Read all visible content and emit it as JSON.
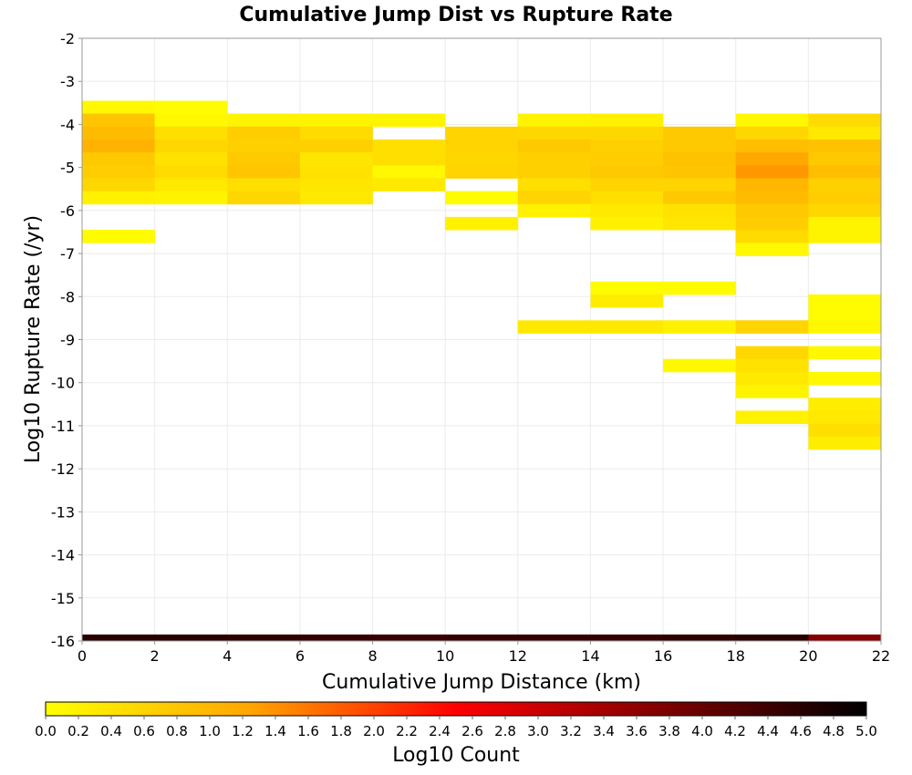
{
  "chart_data": {
    "type": "heatmap",
    "title": "Cumulative Jump Dist vs Rupture Rate",
    "xlabel": "Cumulative Jump Distance (km)",
    "ylabel": "Log10 Rupture Rate (/yr)",
    "xlim": [
      0,
      22
    ],
    "ylim": [
      -16,
      -2
    ],
    "x_ticks": [
      "0",
      "2",
      "4",
      "6",
      "8",
      "10",
      "12",
      "14",
      "16",
      "18",
      "20",
      "22"
    ],
    "y_ticks": [
      "-2",
      "-3",
      "-4",
      "-5",
      "-6",
      "-7",
      "-8",
      "-9",
      "-10",
      "-11",
      "-12",
      "-13",
      "-14",
      "-15",
      "-16"
    ],
    "x_bin_width": 2,
    "y_bin_height": 0.3,
    "grid": true,
    "colorbar": {
      "label": "Log10 Count",
      "range": [
        0,
        5
      ],
      "ticks": [
        "0.0",
        "0.2",
        "0.4",
        "0.6",
        "0.8",
        "1.0",
        "1.2",
        "1.4",
        "1.6",
        "1.8",
        "2.0",
        "2.2",
        "2.4",
        "2.6",
        "2.8",
        "3.0",
        "3.2",
        "3.4",
        "3.6",
        "3.8",
        "4.0",
        "4.2",
        "4.4",
        "4.6",
        "4.8",
        "5.0"
      ],
      "stops": [
        "#ffff00",
        "#ffa500",
        "#ff0000",
        "#800000",
        "#000000"
      ]
    },
    "cells": [
      {
        "x": 0,
        "y": -3.6,
        "v": 0.1
      },
      {
        "x": 0,
        "y": -3.9,
        "v": 0.8
      },
      {
        "x": 0,
        "y": -4.2,
        "v": 0.95
      },
      {
        "x": 0,
        "y": -4.5,
        "v": 1.05
      },
      {
        "x": 0,
        "y": -4.8,
        "v": 0.75
      },
      {
        "x": 0,
        "y": -5.1,
        "v": 0.7
      },
      {
        "x": 0,
        "y": -5.4,
        "v": 0.55
      },
      {
        "x": 0,
        "y": -5.7,
        "v": 0.2
      },
      {
        "x": 0,
        "y": -6.6,
        "v": 0.05
      },
      {
        "x": 2,
        "y": -3.6,
        "v": 0.05
      },
      {
        "x": 2,
        "y": -3.9,
        "v": 0.1
      },
      {
        "x": 2,
        "y": -4.2,
        "v": 0.45
      },
      {
        "x": 2,
        "y": -4.5,
        "v": 0.55
      },
      {
        "x": 2,
        "y": -4.8,
        "v": 0.4
      },
      {
        "x": 2,
        "y": -5.1,
        "v": 0.5
      },
      {
        "x": 2,
        "y": -5.4,
        "v": 0.3
      },
      {
        "x": 2,
        "y": -5.7,
        "v": 0.15
      },
      {
        "x": 4,
        "y": -3.9,
        "v": 0.15
      },
      {
        "x": 4,
        "y": -4.2,
        "v": 0.7
      },
      {
        "x": 4,
        "y": -4.5,
        "v": 0.65
      },
      {
        "x": 4,
        "y": -4.8,
        "v": 0.75
      },
      {
        "x": 4,
        "y": -5.1,
        "v": 0.8
      },
      {
        "x": 4,
        "y": -5.4,
        "v": 0.45
      },
      {
        "x": 4,
        "y": -5.7,
        "v": 0.55
      },
      {
        "x": 6,
        "y": -3.9,
        "v": 0.15
      },
      {
        "x": 6,
        "y": -4.2,
        "v": 0.5
      },
      {
        "x": 6,
        "y": -4.5,
        "v": 0.65
      },
      {
        "x": 6,
        "y": -4.8,
        "v": 0.35
      },
      {
        "x": 6,
        "y": -5.1,
        "v": 0.4
      },
      {
        "x": 6,
        "y": -5.4,
        "v": 0.35
      },
      {
        "x": 6,
        "y": -5.7,
        "v": 0.3
      },
      {
        "x": 8,
        "y": -3.9,
        "v": 0.15
      },
      {
        "x": 8,
        "y": -4.5,
        "v": 0.45
      },
      {
        "x": 8,
        "y": -4.8,
        "v": 0.45
      },
      {
        "x": 8,
        "y": -5.1,
        "v": 0.1
      },
      {
        "x": 8,
        "y": -5.4,
        "v": 0.3
      },
      {
        "x": 10,
        "y": -4.2,
        "v": 0.6
      },
      {
        "x": 10,
        "y": -4.5,
        "v": 0.6
      },
      {
        "x": 10,
        "y": -4.8,
        "v": 0.55
      },
      {
        "x": 10,
        "y": -5.1,
        "v": 0.6
      },
      {
        "x": 10,
        "y": -5.7,
        "v": 0.05
      },
      {
        "x": 10,
        "y": -6.3,
        "v": 0.2
      },
      {
        "x": 12,
        "y": -3.9,
        "v": 0.15
      },
      {
        "x": 12,
        "y": -4.2,
        "v": 0.55
      },
      {
        "x": 12,
        "y": -4.5,
        "v": 0.75
      },
      {
        "x": 12,
        "y": -4.8,
        "v": 0.65
      },
      {
        "x": 12,
        "y": -5.1,
        "v": 0.65
      },
      {
        "x": 12,
        "y": -5.4,
        "v": 0.45
      },
      {
        "x": 12,
        "y": -5.7,
        "v": 0.6
      },
      {
        "x": 12,
        "y": -6.0,
        "v": 0.2
      },
      {
        "x": 12,
        "y": -8.7,
        "v": 0.3
      },
      {
        "x": 14,
        "y": -3.9,
        "v": 0.2
      },
      {
        "x": 14,
        "y": -4.2,
        "v": 0.55
      },
      {
        "x": 14,
        "y": -4.5,
        "v": 0.65
      },
      {
        "x": 14,
        "y": -4.8,
        "v": 0.7
      },
      {
        "x": 14,
        "y": -5.1,
        "v": 0.75
      },
      {
        "x": 14,
        "y": -5.4,
        "v": 0.6
      },
      {
        "x": 14,
        "y": -5.7,
        "v": 0.45
      },
      {
        "x": 14,
        "y": -6.0,
        "v": 0.3
      },
      {
        "x": 14,
        "y": -6.3,
        "v": 0.2
      },
      {
        "x": 14,
        "y": -7.8,
        "v": 0.05
      },
      {
        "x": 14,
        "y": -8.1,
        "v": 0.25
      },
      {
        "x": 14,
        "y": -8.7,
        "v": 0.3
      },
      {
        "x": 16,
        "y": -4.2,
        "v": 0.75
      },
      {
        "x": 16,
        "y": -4.5,
        "v": 0.75
      },
      {
        "x": 16,
        "y": -4.8,
        "v": 0.85
      },
      {
        "x": 16,
        "y": -5.1,
        "v": 0.8
      },
      {
        "x": 16,
        "y": -5.4,
        "v": 0.6
      },
      {
        "x": 16,
        "y": -5.7,
        "v": 0.75
      },
      {
        "x": 16,
        "y": -6.0,
        "v": 0.4
      },
      {
        "x": 16,
        "y": -6.3,
        "v": 0.35
      },
      {
        "x": 16,
        "y": -7.8,
        "v": 0.05
      },
      {
        "x": 16,
        "y": -8.7,
        "v": 0.2
      },
      {
        "x": 16,
        "y": -9.6,
        "v": 0.1
      },
      {
        "x": 18,
        "y": -3.9,
        "v": 0.1
      },
      {
        "x": 18,
        "y": -4.2,
        "v": 0.55
      },
      {
        "x": 18,
        "y": -4.5,
        "v": 0.9
      },
      {
        "x": 18,
        "y": -4.8,
        "v": 1.2
      },
      {
        "x": 18,
        "y": -5.1,
        "v": 1.35
      },
      {
        "x": 18,
        "y": -5.4,
        "v": 1.0
      },
      {
        "x": 18,
        "y": -5.7,
        "v": 0.95
      },
      {
        "x": 18,
        "y": -6.0,
        "v": 0.75
      },
      {
        "x": 18,
        "y": -6.3,
        "v": 0.7
      },
      {
        "x": 18,
        "y": -6.6,
        "v": 0.5
      },
      {
        "x": 18,
        "y": -6.9,
        "v": 0.1
      },
      {
        "x": 18,
        "y": -8.7,
        "v": 0.6
      },
      {
        "x": 18,
        "y": -9.3,
        "v": 0.55
      },
      {
        "x": 18,
        "y": -9.6,
        "v": 0.4
      },
      {
        "x": 18,
        "y": -9.9,
        "v": 0.3
      },
      {
        "x": 18,
        "y": -10.2,
        "v": 0.15
      },
      {
        "x": 18,
        "y": -10.8,
        "v": 0.2
      },
      {
        "x": 20,
        "y": -3.9,
        "v": 0.5
      },
      {
        "x": 20,
        "y": -4.2,
        "v": 0.3
      },
      {
        "x": 20,
        "y": -4.5,
        "v": 0.85
      },
      {
        "x": 20,
        "y": -4.8,
        "v": 0.75
      },
      {
        "x": 20,
        "y": -5.1,
        "v": 0.9
      },
      {
        "x": 20,
        "y": -5.4,
        "v": 0.65
      },
      {
        "x": 20,
        "y": -5.7,
        "v": 0.7
      },
      {
        "x": 20,
        "y": -6.0,
        "v": 0.55
      },
      {
        "x": 20,
        "y": -6.3,
        "v": 0.15
      },
      {
        "x": 20,
        "y": -6.6,
        "v": 0.15
      },
      {
        "x": 20,
        "y": -8.1,
        "v": 0.05
      },
      {
        "x": 20,
        "y": -8.4,
        "v": 0.05
      },
      {
        "x": 20,
        "y": -8.7,
        "v": 0.1
      },
      {
        "x": 20,
        "y": -9.3,
        "v": 0.1
      },
      {
        "x": 20,
        "y": -9.9,
        "v": 0.1
      },
      {
        "x": 20,
        "y": -10.5,
        "v": 0.25
      },
      {
        "x": 20,
        "y": -10.8,
        "v": 0.3
      },
      {
        "x": 20,
        "y": -11.1,
        "v": 0.45
      },
      {
        "x": 20,
        "y": -11.4,
        "v": 0.25
      },
      {
        "x": 0,
        "y": -16.0,
        "v": 4.6
      },
      {
        "x": 2,
        "y": -16.0,
        "v": 4.6
      },
      {
        "x": 4,
        "y": -16.0,
        "v": 4.55
      },
      {
        "x": 6,
        "y": -16.0,
        "v": 4.5
      },
      {
        "x": 8,
        "y": -16.0,
        "v": 4.45
      },
      {
        "x": 10,
        "y": -16.0,
        "v": 4.5
      },
      {
        "x": 12,
        "y": -16.0,
        "v": 4.5
      },
      {
        "x": 14,
        "y": -16.0,
        "v": 4.5
      },
      {
        "x": 16,
        "y": -16.0,
        "v": 4.55
      },
      {
        "x": 18,
        "y": -16.0,
        "v": 4.6
      },
      {
        "x": 20,
        "y": -16.0,
        "v": 3.7
      }
    ]
  }
}
